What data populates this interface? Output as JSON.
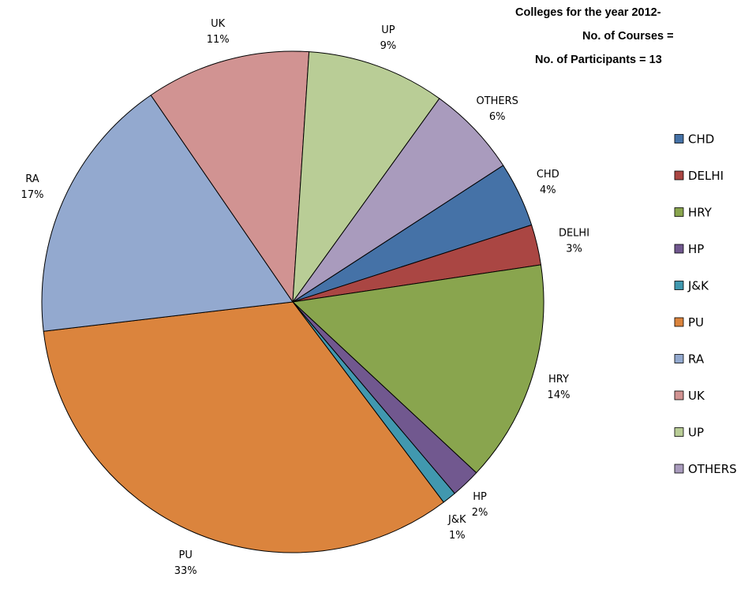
{
  "chart_data": {
    "type": "pie",
    "title_lines": [
      "Colleges for the year 2012-",
      "No. of Courses  =",
      "No. of Participants = 13"
    ],
    "start_category": "CHD",
    "direction": "clockwise",
    "slices": [
      {
        "label": "CHD",
        "percent_label": "4%",
        "value": 4.2,
        "color": "#4572A7"
      },
      {
        "label": "DELHI",
        "percent_label": "3%",
        "value": 2.6,
        "color": "#AA4643"
      },
      {
        "label": "HRY",
        "percent_label": "14%",
        "value": 14.3,
        "color": "#89A54E"
      },
      {
        "label": "HP",
        "percent_label": "2%",
        "value": 1.9,
        "color": "#71588F"
      },
      {
        "label": "J&K",
        "percent_label": "1%",
        "value": 0.9,
        "color": "#4198AF"
      },
      {
        "label": "PU",
        "percent_label": "33%",
        "value": 33.4,
        "color": "#DB843D"
      },
      {
        "label": "RA",
        "percent_label": "17%",
        "value": 17.3,
        "color": "#93A9CF"
      },
      {
        "label": "UK",
        "percent_label": "11%",
        "value": 10.6,
        "color": "#D19392"
      },
      {
        "label": "UP",
        "percent_label": "9%",
        "value": 8.9,
        "color": "#B9CD96"
      },
      {
        "label": "OTHERS",
        "percent_label": "6%",
        "value": 5.9,
        "color": "#A99BBD"
      }
    ],
    "legend": {
      "position": "right",
      "entries": [
        "CHD",
        "DELHI",
        "HRY",
        "HP",
        "J&K",
        "PU",
        "RA",
        "UK",
        "UP",
        "OTHERS"
      ]
    }
  }
}
